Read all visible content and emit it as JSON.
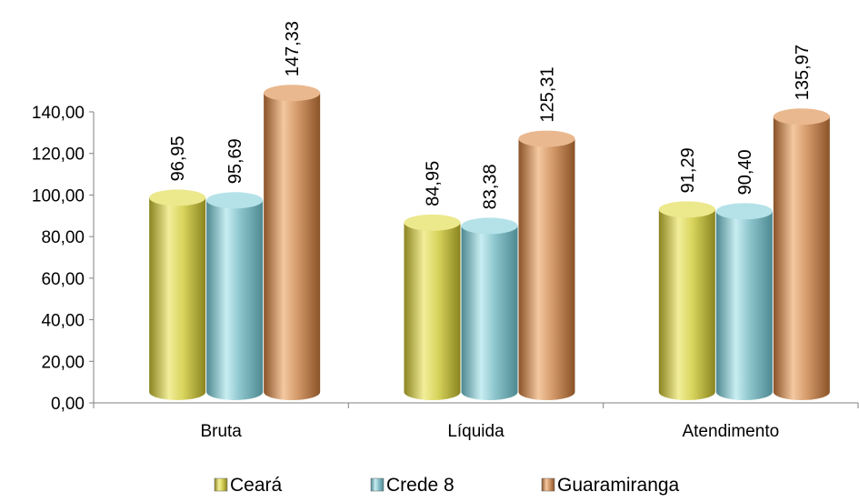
{
  "chart_data": {
    "type": "bar",
    "title": "",
    "xlabel": "",
    "ylabel": "",
    "categories": [
      "Bruta",
      "Líquida",
      "Atendimento"
    ],
    "series": [
      {
        "name": "Ceará",
        "values": [
          96.95,
          84.95,
          91.29
        ],
        "labels": [
          "96,95",
          "84,95",
          "91,29"
        ],
        "color": "#d8d45c"
      },
      {
        "name": "Crede 8",
        "values": [
          95.69,
          83.38,
          90.4
        ],
        "labels": [
          "95,69",
          "83,38",
          "90,40"
        ],
        "color": "#8cc4cc"
      },
      {
        "name": "Guaramiranga",
        "values": [
          147.33,
          125.31,
          135.97
        ],
        "labels": [
          "147,33",
          "125,31",
          "135,97"
        ],
        "color": "#d49a6a"
      }
    ],
    "ylim": [
      0,
      140
    ],
    "yticks": [
      0,
      20,
      40,
      60,
      80,
      100,
      120,
      140
    ],
    "ytick_labels": [
      "0,00",
      "20,00",
      "40,00",
      "60,00",
      "80,00",
      "100,00",
      "120,00",
      "140,00"
    ],
    "grid": false,
    "legend_position": "bottom",
    "style": "3d-cylinder"
  }
}
